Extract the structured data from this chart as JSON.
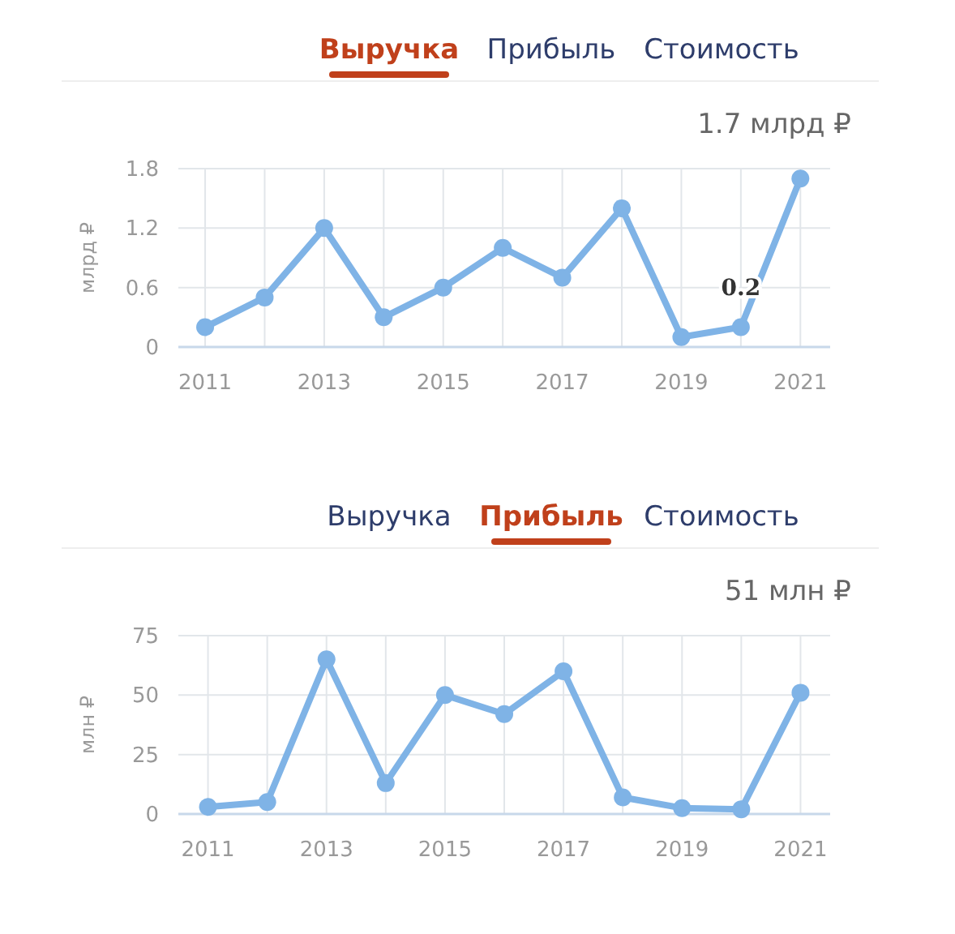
{
  "chart_data": [
    {
      "type": "line",
      "title": "Выручка",
      "subtitle": "1.7 млрд ₽",
      "ylabel": "млрд ₽",
      "annotations": [
        "Прибыль",
        "Стоимость",
        {
          "text": "0.2",
          "x": 2020,
          "y": 0.2
        }
      ],
      "x": [
        2011,
        2012,
        2013,
        2014,
        2015,
        2016,
        2017,
        2018,
        2019,
        2020,
        2021
      ],
      "series": [
        {
          "color": "#7fb3e6",
          "values": [
            0.2,
            0.5,
            1.2,
            0.3,
            0.6,
            1.0,
            0.7,
            1.4,
            0.1,
            0.2,
            1.7
          ]
        }
      ],
      "xlim": [
        2010.55,
        2021.5
      ],
      "xticks": [
        2011,
        {
          "value": 2012,
          "label": null
        },
        2013,
        {
          "value": 2014,
          "label": null
        },
        2015,
        {
          "value": 2016,
          "label": null
        },
        2017,
        {
          "value": 2018,
          "label": null
        },
        2019,
        {
          "value": 2020,
          "label": null
        },
        2021
      ],
      "ylim": [
        0,
        1.8
      ],
      "yticks": [
        0,
        0.6,
        1.2,
        1.8
      ],
      "grid": true,
      "marker": "circle",
      "line_style": "solid"
    },
    {
      "type": "line",
      "title": "Прибыль",
      "subtitle": "51 млн ₽",
      "ylabel": "млн ₽",
      "annotations": [
        "Выручка",
        "Стоимость"
      ],
      "x": [
        2011,
        2012,
        2013,
        2014,
        2015,
        2016,
        2017,
        2018,
        2019,
        2020,
        2021
      ],
      "series": [
        {
          "color": "#7fb3e6",
          "values": [
            3,
            5,
            65,
            13,
            50,
            42,
            60,
            7,
            2.5,
            2,
            51
          ]
        }
      ],
      "xlim": [
        2010.5,
        2021.5
      ],
      "xticks": [
        2011,
        {
          "value": 2012,
          "label": null
        },
        2013,
        {
          "value": 2014,
          "label": null
        },
        2015,
        {
          "value": 2016,
          "label": null
        },
        2017,
        {
          "value": 2018,
          "label": null
        },
        2019,
        {
          "value": 2020,
          "label": null
        },
        2021
      ],
      "ylim": [
        0,
        75
      ],
      "yticks": [
        0,
        25,
        50,
        75
      ],
      "grid": true,
      "marker": "circle",
      "line_style": "solid"
    }
  ]
}
